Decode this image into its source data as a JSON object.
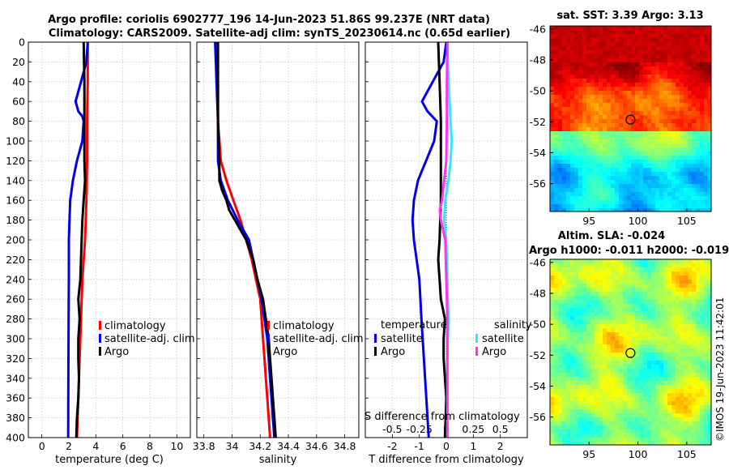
{
  "title_line1": "Argo profile: coriolis 6902777_196 14-Jun-2023 51.86S 99.237E (NRT data)",
  "title_line2": "Climatology: CARS2009. Satellite-adj clim: synTS_20230614.nc (0.65d earlier)",
  "credit": "©IMOS 19-Jun-2023 11:42:01",
  "colors": {
    "climatology": "#ff0000",
    "satellite": "#0000ee",
    "argo": "#000000",
    "sat_salinity": "#33e6ff",
    "argo_salinity": "#ff33ee"
  },
  "chart_data": [
    {
      "type": "line",
      "title": "",
      "xlabel": "temperature (deg C)",
      "ylabel": "",
      "xlim": [
        -1,
        11
      ],
      "ylim": [
        0,
        400
      ],
      "y_reversed": true,
      "xticks": [
        "0",
        "2",
        "4",
        "6",
        "8",
        "10"
      ],
      "yticks": [
        "0",
        "20",
        "40",
        "60",
        "80",
        "100",
        "120",
        "140",
        "160",
        "180",
        "200",
        "220",
        "240",
        "260",
        "280",
        "300",
        "320",
        "340",
        "360",
        "380",
        "400"
      ],
      "grid": true,
      "legend": [
        "climatology",
        "satellite-adj. clim",
        "Argo"
      ],
      "legend_placement": "lower-right",
      "series": [
        {
          "name": "climatology",
          "color": "#ff0000",
          "depth": [
            0,
            40,
            80,
            120,
            160,
            200,
            240,
            280,
            320,
            360,
            400
          ],
          "values": [
            3.4,
            3.4,
            3.35,
            3.35,
            3.3,
            3.2,
            3.0,
            2.9,
            2.8,
            2.7,
            2.6
          ]
        },
        {
          "name": "satellite-adj. clim",
          "color": "#0000ee",
          "depth": [
            0,
            20,
            40,
            55,
            60,
            70,
            75,
            80,
            100,
            120,
            140,
            160,
            180,
            200,
            240,
            280,
            320,
            360,
            400
          ],
          "values": [
            3.4,
            3.3,
            2.9,
            2.6,
            2.5,
            2.7,
            3.0,
            3.1,
            3.0,
            2.6,
            2.3,
            2.1,
            2.05,
            2.0,
            2.0,
            1.98,
            1.97,
            1.96,
            1.95
          ]
        },
        {
          "name": "Argo",
          "color": "#000000",
          "depth": [
            0,
            40,
            80,
            120,
            140,
            160,
            180,
            200,
            220,
            240,
            260,
            280,
            300,
            320,
            340,
            360,
            380,
            400
          ],
          "values": [
            3.1,
            3.15,
            3.15,
            3.15,
            3.2,
            3.1,
            3.0,
            2.95,
            2.9,
            2.85,
            2.7,
            2.8,
            2.7,
            2.7,
            2.75,
            2.7,
            2.6,
            2.55
          ]
        }
      ]
    },
    {
      "type": "line",
      "title": "",
      "xlabel": "salinity",
      "ylabel": "",
      "xlim": [
        33.75,
        34.9
      ],
      "ylim": [
        0,
        400
      ],
      "y_reversed": true,
      "xticks": [
        "33.8",
        "34",
        "34.2",
        "34.4",
        "34.6",
        "34.8"
      ],
      "grid": true,
      "legend": [
        "climatology",
        "satellite-adj. clim",
        "Argo"
      ],
      "legend_placement": "lower-right",
      "series": [
        {
          "name": "climatology",
          "color": "#ff0000",
          "depth": [
            0,
            40,
            80,
            120,
            140,
            160,
            180,
            200,
            220,
            240,
            260,
            280,
            300,
            320,
            340,
            360,
            380,
            400
          ],
          "values": [
            33.89,
            33.9,
            33.9,
            33.92,
            33.96,
            34.01,
            34.06,
            34.1,
            34.14,
            34.17,
            34.2,
            34.21,
            34.22,
            34.23,
            34.24,
            34.25,
            34.26,
            34.27
          ]
        },
        {
          "name": "satellite-adj. clim",
          "color": "#0000ee",
          "depth": [
            0,
            40,
            80,
            120,
            140,
            160,
            180,
            200,
            220,
            240,
            260,
            280,
            300,
            320,
            340,
            360,
            380,
            400
          ],
          "values": [
            33.88,
            33.89,
            33.9,
            33.9,
            33.92,
            33.97,
            34.04,
            34.12,
            34.15,
            34.18,
            34.21,
            34.23,
            34.25,
            34.26,
            34.27,
            34.28,
            34.29,
            34.3
          ]
        },
        {
          "name": "Argo",
          "color": "#000000",
          "depth": [
            0,
            40,
            80,
            120,
            140,
            150,
            160,
            170,
            180,
            190,
            200,
            220,
            240,
            260,
            280,
            300,
            320,
            340,
            360,
            380,
            400
          ],
          "values": [
            33.9,
            33.9,
            33.9,
            33.91,
            33.91,
            33.93,
            33.96,
            33.98,
            34.02,
            34.06,
            34.1,
            34.15,
            34.18,
            34.22,
            34.24,
            34.26,
            34.27,
            34.28,
            34.29,
            34.3,
            34.31
          ]
        }
      ]
    },
    {
      "type": "line",
      "title": "",
      "xlabel": "T difference from climatology",
      "xlabel_top": "S difference from climatology",
      "ylabel": "",
      "xlim": [
        -3,
        3
      ],
      "ylim": [
        0,
        400
      ],
      "y_reversed": true,
      "xticks": [
        "-2",
        "-1",
        "0",
        "1",
        "2"
      ],
      "xticks_top": [
        "-0.5",
        "-0.25",
        "0",
        "0.25",
        "0.5"
      ],
      "grid": true,
      "legend_groups": [
        {
          "title": "temperature",
          "entries": [
            "satellite",
            "Argo"
          ]
        },
        {
          "title": "salinity",
          "entries": [
            "satellite",
            "Argo"
          ]
        }
      ],
      "series": [
        {
          "name": "temperature satellite",
          "color": "#0000ee",
          "depth": [
            0,
            20,
            40,
            55,
            60,
            70,
            80,
            100,
            120,
            140,
            160,
            180,
            200,
            240,
            280,
            320,
            360,
            400
          ],
          "values": [
            0.0,
            -0.1,
            -0.5,
            -0.8,
            -0.9,
            -0.7,
            -0.35,
            -0.45,
            -0.75,
            -1.05,
            -1.2,
            -1.25,
            -1.2,
            -1.0,
            -0.92,
            -0.83,
            -0.74,
            -0.65
          ]
        },
        {
          "name": "temperature Argo",
          "color": "#000000",
          "depth": [
            0,
            40,
            80,
            120,
            160,
            200,
            220,
            240,
            260,
            280,
            300,
            320,
            360,
            400
          ],
          "values": [
            -0.3,
            -0.25,
            -0.2,
            -0.2,
            -0.2,
            -0.25,
            -0.3,
            -0.25,
            -0.2,
            -0.05,
            -0.1,
            -0.1,
            0.0,
            -0.05
          ]
        },
        {
          "name": "salinity satellite",
          "color": "#33e6ff",
          "depth": [
            0,
            40,
            60,
            80,
            100,
            120,
            140,
            160,
            180,
            200,
            240,
            280,
            320,
            360,
            400
          ],
          "values": [
            0.01,
            0.02,
            0.03,
            0.04,
            0.05,
            0.04,
            0.02,
            -0.01,
            -0.02,
            0.0,
            0.01,
            0.02,
            0.01,
            0.01,
            0.01
          ]
        },
        {
          "name": "salinity Argo",
          "color": "#ff33ee",
          "depth": [
            0,
            40,
            80,
            120,
            140,
            160,
            170,
            180,
            190,
            200,
            240,
            280,
            320,
            360,
            400
          ],
          "values": [
            0.01,
            0.005,
            0.005,
            0.0,
            -0.02,
            -0.04,
            -0.06,
            -0.05,
            -0.03,
            -0.01,
            0.0,
            0.01,
            0.01,
            0.01,
            0.01
          ]
        }
      ]
    },
    {
      "type": "heatmap",
      "title": "sat. SST: 3.39 Argo: 3.13",
      "xlim": [
        91,
        107.5
      ],
      "ylim": [
        -57.8,
        -45.8
      ],
      "xticks": [
        "95",
        "100",
        "105"
      ],
      "yticks": [
        "-46",
        "-48",
        "-50",
        "-52",
        "-54",
        "-56"
      ],
      "marker": {
        "lon": 99.237,
        "lat": -51.86
      }
    },
    {
      "type": "heatmap",
      "title": "Altim. SLA: -0.024",
      "subtitle": "Argo h1000: -0.011 h2000: -0.019",
      "xlim": [
        91,
        107.5
      ],
      "ylim": [
        -57.8,
        -45.8
      ],
      "xticks": [
        "95",
        "100",
        "105"
      ],
      "yticks": [
        "-46",
        "-48",
        "-50",
        "-52",
        "-54",
        "-56"
      ],
      "marker": {
        "lon": 99.237,
        "lat": -51.86
      }
    }
  ]
}
